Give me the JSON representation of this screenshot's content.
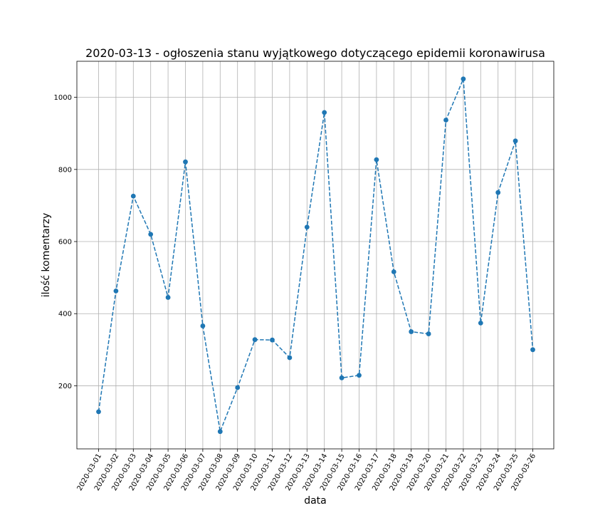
{
  "chart_data": {
    "type": "line",
    "title": "2020-03-13 - ogłoszenia stanu wyjątkowego dotyczącego epidemii koronawirusa",
    "xlabel": "data",
    "ylabel": "ilość komentarzy",
    "ylim": [
      25,
      1100
    ],
    "yticks": [
      200,
      400,
      600,
      800,
      1000
    ],
    "grid": true,
    "categories": [
      "2020-03-01",
      "2020-03-02",
      "2020-03-03",
      "2020-03-04",
      "2020-03-05",
      "2020-03-06",
      "2020-03-07",
      "2020-03-08",
      "2020-03-09",
      "2020-03-10",
      "2020-03-11",
      "2020-03-12",
      "2020-03-13",
      "2020-03-14",
      "2020-03-15",
      "2020-03-16",
      "2020-03-17",
      "2020-03-18",
      "2020-03-19",
      "2020-03-20",
      "2020-03-21",
      "2020-03-22",
      "2020-03-23",
      "2020-03-24",
      "2020-03-25",
      "2020-03-26"
    ],
    "series": [
      {
        "color": "#1f77b4",
        "line_style": "dashed",
        "marker": "circle",
        "values": [
          128,
          463,
          726,
          620,
          445,
          821,
          366,
          73,
          195,
          328,
          327,
          278,
          640,
          958,
          222,
          229,
          827,
          516,
          350,
          344,
          937,
          1051,
          374,
          736,
          879,
          300
        ]
      }
    ]
  }
}
